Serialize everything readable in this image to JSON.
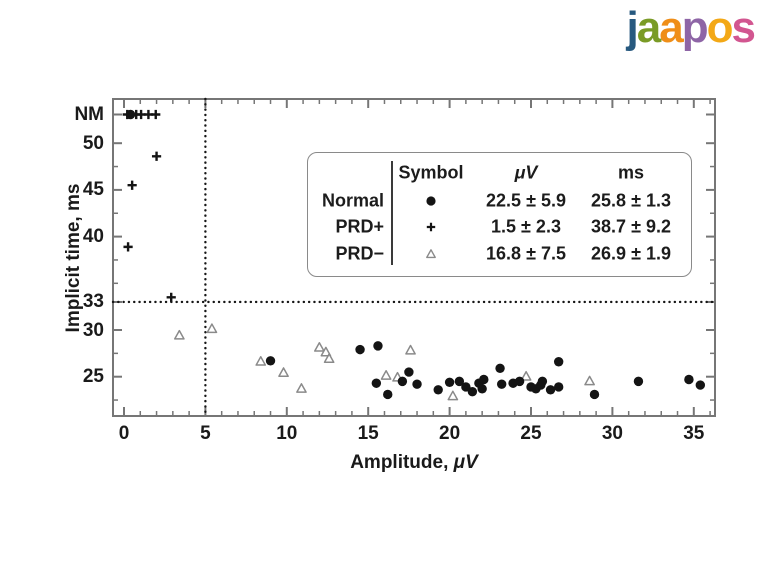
{
  "logo": {
    "name": "jaapos",
    "letters": [
      {
        "char": "j",
        "color": "#27597f"
      },
      {
        "char": "a",
        "color": "#7a9b26"
      },
      {
        "char": "a",
        "color": "#ef8e18"
      },
      {
        "char": "p",
        "color": "#8e65a6"
      },
      {
        "char": "o",
        "color": "#f3a816"
      },
      {
        "char": "s",
        "color": "#d25690"
      }
    ]
  },
  "chart_data": {
    "type": "scatter",
    "title": "",
    "xlabel": "Amplitude, μV",
    "xlabel_prefix": "Amplitude, ",
    "xlabel_unit": "μV",
    "ylabel": "Implicit time, ms",
    "xlim": [
      -0.7,
      36.3
    ],
    "ylim": [
      20.8,
      54.7
    ],
    "x_ticks": [
      0,
      5,
      10,
      15,
      20,
      25,
      30,
      35
    ],
    "x_minor_step": 1,
    "y_ticks": [
      {
        "label": "NM",
        "value": "NM"
      },
      {
        "label": "50",
        "value": 50
      },
      {
        "label": "45",
        "value": 45
      },
      {
        "label": "40",
        "value": 40
      },
      {
        "label": "33",
        "value": 33
      },
      {
        "label": "30",
        "value": 30
      },
      {
        "label": "25",
        "value": 25
      }
    ],
    "y_minor_ticks": [
      47.5,
      42.5,
      37.5,
      35,
      27.5,
      22.5
    ],
    "nm_meaning": "NM",
    "grid": "off",
    "reference_lines": {
      "vertical_x": 5,
      "horizontal_y": 33,
      "style": "dotted",
      "color": "#161616"
    },
    "frame_color": "#767676",
    "series": [
      {
        "name": "Normal",
        "marker": "filled-circle",
        "color": "#141414",
        "points": [
          [
            0.4,
            "NM"
          ],
          [
            9.0,
            26.7
          ],
          [
            14.5,
            27.9
          ],
          [
            15.6,
            28.3
          ],
          [
            15.5,
            24.3
          ],
          [
            16.2,
            23.1
          ],
          [
            17.1,
            24.5
          ],
          [
            17.5,
            25.5
          ],
          [
            18.0,
            24.2
          ],
          [
            19.3,
            23.6
          ],
          [
            20.0,
            24.4
          ],
          [
            20.6,
            24.5
          ],
          [
            21.0,
            23.9
          ],
          [
            21.4,
            23.4
          ],
          [
            21.8,
            24.3
          ],
          [
            22.0,
            23.7
          ],
          [
            22.1,
            24.7
          ],
          [
            23.1,
            25.9
          ],
          [
            23.2,
            24.2
          ],
          [
            23.9,
            24.3
          ],
          [
            24.3,
            24.5
          ],
          [
            25.0,
            23.9
          ],
          [
            25.3,
            23.7
          ],
          [
            25.6,
            24.1
          ],
          [
            25.7,
            24.5
          ],
          [
            26.2,
            23.6
          ],
          [
            26.7,
            26.6
          ],
          [
            26.7,
            23.9
          ],
          [
            28.9,
            23.1
          ],
          [
            31.6,
            24.5
          ],
          [
            34.7,
            24.7
          ],
          [
            35.4,
            24.1
          ]
        ]
      },
      {
        "name": "PRD+",
        "marker": "plus",
        "color": "#141414",
        "points": [
          [
            0.2,
            "NM"
          ],
          [
            0.75,
            "NM"
          ],
          [
            1.05,
            "NM"
          ],
          [
            1.5,
            "NM"
          ],
          [
            1.95,
            "NM"
          ],
          [
            2.0,
            48.6
          ],
          [
            0.5,
            45.5
          ],
          [
            0.25,
            38.9
          ],
          [
            2.9,
            33.5
          ]
        ]
      },
      {
        "name": "PRD−",
        "marker": "open-triangle",
        "color": "#8a8a8a",
        "points": [
          [
            3.4,
            29.4
          ],
          [
            5.4,
            30.1
          ],
          [
            8.4,
            26.6
          ],
          [
            9.8,
            25.4
          ],
          [
            10.9,
            23.7
          ],
          [
            12.0,
            28.1
          ],
          [
            12.4,
            27.6
          ],
          [
            12.6,
            26.9
          ],
          [
            16.1,
            25.1
          ],
          [
            16.8,
            24.9
          ],
          [
            17.6,
            27.8
          ],
          [
            20.2,
            22.9
          ],
          [
            24.7,
            25.0
          ],
          [
            28.6,
            24.5
          ]
        ]
      }
    ]
  },
  "legend": {
    "headers": {
      "symbol": "Symbol",
      "uv": "μV",
      "ms": "ms"
    },
    "rows": [
      {
        "label": "Normal",
        "marker": "filled-circle",
        "uv": "22.5 ± 5.9",
        "ms": "25.8 ± 1.3"
      },
      {
        "label": "PRD+",
        "marker": "plus",
        "uv": "1.5 ± 2.3",
        "ms": "38.7 ± 9.2"
      },
      {
        "label": "PRD−",
        "marker": "open-triangle",
        "uv": "16.8 ± 7.5",
        "ms": "26.9 ± 1.9"
      }
    ]
  }
}
